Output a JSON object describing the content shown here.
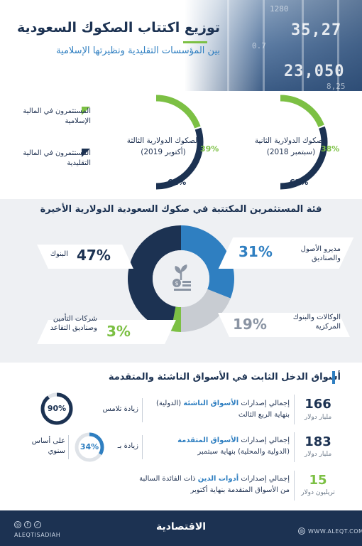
{
  "header": {
    "title": "توزيع اكتتاب الصكوك السعودية",
    "subtitle": "بين المؤسسات التقليدية ونظيرتها الإسلامية",
    "tickers": [
      "35,27",
      "23,050",
      "1280",
      "0.7",
      "8,25"
    ]
  },
  "sukuk": {
    "first": {
      "name": "الصكوك الدولارية الثانية",
      "date": "(سبتمبر 2018)",
      "islamic_pct": "38%",
      "conventional_pct": "62%",
      "islamic_share": 0.38
    },
    "second": {
      "name": "الصكوك الدولارية الثالثة",
      "date": "(أكتوبر 2019)",
      "islamic_pct": "39%",
      "conventional_pct": "61%",
      "islamic_share": 0.39
    },
    "legend": {
      "islamic": "المستثمرون في المالية الإسلامية",
      "conventional": "المستثمرون في المالية التقليدية"
    },
    "colors": {
      "islamic": "#7cc044",
      "conventional": "#1c3252"
    }
  },
  "investors": {
    "title": "فئة المستثمرين المكتتبة في صكوك السعودية الدولارية الأخيرة",
    "icon": "money-plant-icon",
    "segments": [
      {
        "label": "البنوك",
        "pct": "47%",
        "value": 47,
        "color": "#1c3252"
      },
      {
        "label": "مديرو الأصول والصناديق",
        "pct": "31%",
        "value": 31,
        "color": "#2f7fc1"
      },
      {
        "label": "الوكالات والبنوك المركزية",
        "pct": "19%",
        "value": 19,
        "color": "#c8ccd2"
      },
      {
        "label": "شركات التأمين وصناديق التقاعد",
        "pct": "3%",
        "value": 3,
        "color": "#7cc044"
      }
    ]
  },
  "income": {
    "title": "أسواق الدخل الثابت في الأسواق الناشئة والمتقدمة",
    "rows": [
      {
        "num": "166",
        "unit": "مليار دولار",
        "desc_prefix": "إجمالي إصدارات ",
        "desc_highlight": "الأسواق الناشئة",
        "desc_suffix": " (الدولية)",
        "desc_line2": "بنهاية الربع الثالث",
        "badge": "90%",
        "badge_value": 90,
        "badge_caption": "زيادة تلامس"
      },
      {
        "num": "183",
        "unit": "مليار دولار",
        "desc_prefix": "إجمالي إصدارات ",
        "desc_highlight": "الأسواق المتقدمة",
        "desc_suffix": "",
        "desc_line2": "(الدولية والمحلية) بنهاية سبتمبر",
        "badge": "34%",
        "badge_value": 34,
        "badge_caption": "زيادة بـ",
        "badge_note": "على أساس سنوي"
      },
      {
        "num": "15",
        "unit": "تريليون دولار",
        "desc_prefix": "إجمالي إصدارات ",
        "desc_highlight": "أدوات الدين",
        "desc_suffix": " ذات الفائدة السالبة",
        "desc_line2": "من الأسواق المتقدمة بنهاية أكتوبر"
      }
    ]
  },
  "footer": {
    "social": "ALEQTISADIAH",
    "brand": "الاقتصادية",
    "website": "WWW.ALEQT.COM"
  }
}
